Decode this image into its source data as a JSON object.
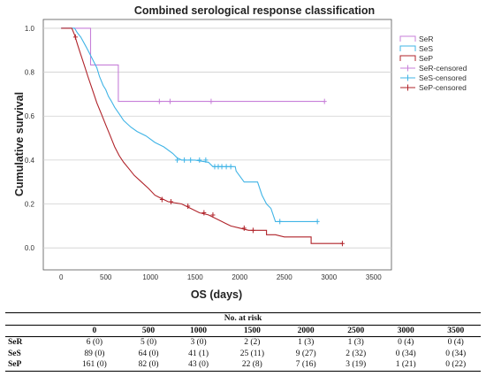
{
  "chart_data": {
    "type": "line",
    "title": "Combined serological response classification",
    "xlabel": "OS (days)",
    "ylabel": "Cumulative survival",
    "xlim": [
      -200,
      3700
    ],
    "ylim": [
      -0.1,
      1.04
    ],
    "xticks": [
      "0",
      "500",
      "1000",
      "1500",
      "2000",
      "2500",
      "3000",
      "3500"
    ],
    "yticks": [
      "0.0",
      "0.2",
      "0.4",
      "0.6",
      "0.8",
      "1.0"
    ],
    "grid": "horizontal",
    "legend_position": "right",
    "series": [
      {
        "name": "SeR",
        "color": "#c77fd9",
        "points": [
          [
            0,
            1.0
          ],
          [
            330,
            1.0
          ],
          [
            330,
            0.833
          ],
          [
            640,
            0.833
          ],
          [
            640,
            0.667
          ],
          [
            2950,
            0.667
          ]
        ],
        "censored": [
          [
            1100,
            0.667
          ],
          [
            1220,
            0.667
          ],
          [
            1680,
            0.667
          ],
          [
            2950,
            0.667
          ]
        ]
      },
      {
        "name": "SeS",
        "color": "#40b4e6",
        "points": [
          [
            0,
            1.0
          ],
          [
            150,
            1.0
          ],
          [
            180,
            0.98
          ],
          [
            220,
            0.96
          ],
          [
            260,
            0.93
          ],
          [
            300,
            0.9
          ],
          [
            350,
            0.86
          ],
          [
            400,
            0.82
          ],
          [
            430,
            0.78
          ],
          [
            470,
            0.74
          ],
          [
            500,
            0.72
          ],
          [
            530,
            0.69
          ],
          [
            560,
            0.67
          ],
          [
            600,
            0.64
          ],
          [
            650,
            0.61
          ],
          [
            700,
            0.58
          ],
          [
            780,
            0.55
          ],
          [
            850,
            0.53
          ],
          [
            950,
            0.51
          ],
          [
            1050,
            0.48
          ],
          [
            1150,
            0.46
          ],
          [
            1250,
            0.43
          ],
          [
            1300,
            0.41
          ],
          [
            1350,
            0.4
          ],
          [
            1500,
            0.4
          ],
          [
            1650,
            0.39
          ],
          [
            1700,
            0.37
          ],
          [
            1950,
            0.37
          ],
          [
            1960,
            0.35
          ],
          [
            2050,
            0.3
          ],
          [
            2200,
            0.3
          ],
          [
            2250,
            0.24
          ],
          [
            2300,
            0.2
          ],
          [
            2350,
            0.18
          ],
          [
            2400,
            0.12
          ],
          [
            2870,
            0.12
          ]
        ],
        "censored": [
          [
            1300,
            0.4
          ],
          [
            1380,
            0.4
          ],
          [
            1450,
            0.4
          ],
          [
            1550,
            0.4
          ],
          [
            1620,
            0.4
          ],
          [
            1720,
            0.37
          ],
          [
            1760,
            0.37
          ],
          [
            1800,
            0.37
          ],
          [
            1850,
            0.37
          ],
          [
            1900,
            0.37
          ],
          [
            2450,
            0.12
          ],
          [
            2870,
            0.12
          ]
        ]
      },
      {
        "name": "SeP",
        "color": "#b0232a",
        "points": [
          [
            0,
            1.0
          ],
          [
            120,
            1.0
          ],
          [
            150,
            0.97
          ],
          [
            180,
            0.93
          ],
          [
            220,
            0.88
          ],
          [
            260,
            0.83
          ],
          [
            300,
            0.78
          ],
          [
            350,
            0.72
          ],
          [
            400,
            0.66
          ],
          [
            450,
            0.61
          ],
          [
            500,
            0.56
          ],
          [
            550,
            0.51
          ],
          [
            600,
            0.46
          ],
          [
            650,
            0.42
          ],
          [
            700,
            0.39
          ],
          [
            760,
            0.36
          ],
          [
            820,
            0.33
          ],
          [
            900,
            0.3
          ],
          [
            980,
            0.27
          ],
          [
            1050,
            0.24
          ],
          [
            1100,
            0.23
          ],
          [
            1200,
            0.21
          ],
          [
            1350,
            0.2
          ],
          [
            1450,
            0.18
          ],
          [
            1550,
            0.16
          ],
          [
            1650,
            0.15
          ],
          [
            1800,
            0.12
          ],
          [
            1900,
            0.1
          ],
          [
            2000,
            0.09
          ],
          [
            2100,
            0.08
          ],
          [
            2300,
            0.08
          ],
          [
            2300,
            0.06
          ],
          [
            2400,
            0.06
          ],
          [
            2500,
            0.05
          ],
          [
            2800,
            0.05
          ],
          [
            2800,
            0.02
          ],
          [
            3150,
            0.02
          ]
        ],
        "censored": [
          [
            160,
            0.96
          ],
          [
            1130,
            0.22
          ],
          [
            1230,
            0.21
          ],
          [
            1420,
            0.19
          ],
          [
            1600,
            0.16
          ],
          [
            1700,
            0.15
          ],
          [
            2050,
            0.09
          ],
          [
            2150,
            0.08
          ],
          [
            3150,
            0.02
          ]
        ]
      }
    ],
    "legend": [
      {
        "label": "SeR",
        "series": "SeR",
        "marker": "line"
      },
      {
        "label": "SeS",
        "series": "SeS",
        "marker": "line"
      },
      {
        "label": "SeP",
        "series": "SeP",
        "marker": "line"
      },
      {
        "label": "SeR-censored",
        "series": "SeR",
        "marker": "plus"
      },
      {
        "label": "SeS-censored",
        "series": "SeS",
        "marker": "plus"
      },
      {
        "label": "SeP-censored",
        "series": "SeP",
        "marker": "plus"
      }
    ]
  },
  "risk_table": {
    "caption": "No. at risk",
    "times": [
      "0",
      "500",
      "1000",
      "1500",
      "2000",
      "2500",
      "3000",
      "3500"
    ],
    "rows": [
      {
        "label": "SeR",
        "values": [
          "6 (0)",
          "5 (0)",
          "3 (0)",
          "2 (2)",
          "1 (3)",
          "1 (3)",
          "0 (4)",
          "0 (4)"
        ]
      },
      {
        "label": "SeS",
        "values": [
          "89 (0)",
          "64 (0)",
          "41 (1)",
          "25 (11)",
          "9 (27)",
          "2 (32)",
          "0 (34)",
          "0 (34)"
        ]
      },
      {
        "label": "SeP",
        "values": [
          "161 (0)",
          "82 (0)",
          "43 (0)",
          "22 (8)",
          "7 (16)",
          "3 (19)",
          "1 (21)",
          "0 (22)"
        ]
      }
    ]
  }
}
